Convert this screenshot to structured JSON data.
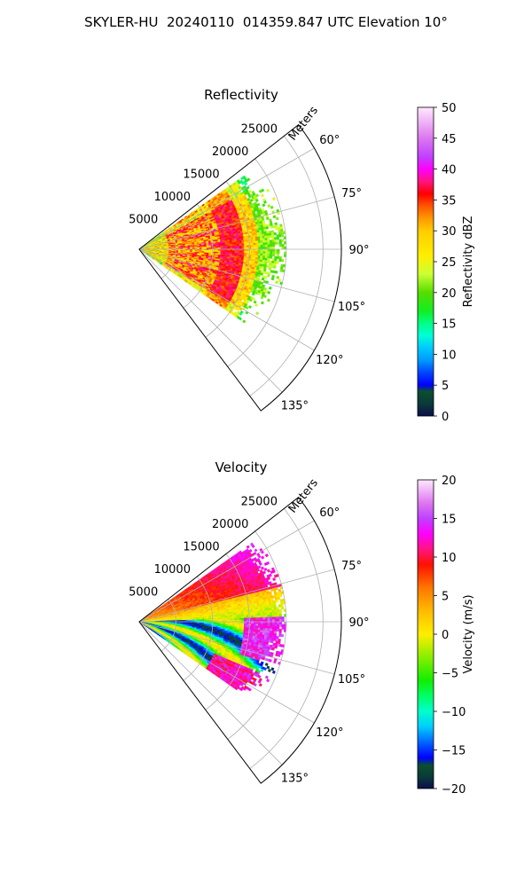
{
  "suptitle": "SKYLER-HU  20240110  014359.847 UTC Elevation 10°",
  "chart_data": [
    {
      "type": "heatmap",
      "title": "Reflectivity",
      "radial_axis_label": "Meters",
      "radial_ticks": [
        "5000",
        "10000",
        "15000",
        "20000",
        "25000"
      ],
      "radial_tick_values": [
        5000,
        10000,
        15000,
        20000,
        25000
      ],
      "angle_ticks": [
        "60°",
        "75°",
        "90°",
        "105°",
        "120°",
        "135°"
      ],
      "angle_tick_values": [
        60,
        75,
        90,
        105,
        120,
        135
      ],
      "theta_range": [
        52,
        143
      ],
      "r_max": 27500,
      "data_sector": [
        54,
        125
      ],
      "data_r_max": 20000,
      "grid": true,
      "colorbar": {
        "label": "Reflectivity dBZ",
        "range": [
          0,
          50
        ],
        "ticks": [
          "0",
          "5",
          "10",
          "15",
          "20",
          "25",
          "30",
          "35",
          "40",
          "45",
          "50"
        ],
        "stops": [
          {
            "v": 0,
            "c": "#0c0d4a"
          },
          {
            "v": 2,
            "c": "#0a3a3a"
          },
          {
            "v": 4,
            "c": "#0b4f2f"
          },
          {
            "v": 5,
            "c": "#0000ff"
          },
          {
            "v": 7,
            "c": "#0044ff"
          },
          {
            "v": 9,
            "c": "#0099ff"
          },
          {
            "v": 11,
            "c": "#00c8ff"
          },
          {
            "v": 13,
            "c": "#00ffd8"
          },
          {
            "v": 15,
            "c": "#00ff88"
          },
          {
            "v": 17,
            "c": "#11ee22"
          },
          {
            "v": 20,
            "c": "#55dd00"
          },
          {
            "v": 23,
            "c": "#ccff33"
          },
          {
            "v": 26,
            "c": "#ffee00"
          },
          {
            "v": 30,
            "c": "#ffcc00"
          },
          {
            "v": 32,
            "c": "#ff9900"
          },
          {
            "v": 34,
            "c": "#ff5500"
          },
          {
            "v": 36,
            "c": "#ff0000"
          },
          {
            "v": 38,
            "c": "#ff1480"
          },
          {
            "v": 40,
            "c": "#ff00ff"
          },
          {
            "v": 42,
            "c": "#c040ff"
          },
          {
            "v": 45,
            "c": "#dd77ee"
          },
          {
            "v": 50,
            "c": "#ffe8ff"
          }
        ]
      },
      "field_description": "Reflectivity mostly 25-38 dBZ near radar, decreasing to 18-24 dBZ beyond ~15 km"
    },
    {
      "type": "heatmap",
      "title": "Velocity",
      "radial_axis_label": "Meters",
      "radial_ticks": [
        "5000",
        "10000",
        "15000",
        "20000",
        "25000"
      ],
      "radial_tick_values": [
        5000,
        10000,
        15000,
        20000,
        25000
      ],
      "angle_ticks": [
        "60°",
        "75°",
        "90°",
        "105°",
        "120°",
        "135°"
      ],
      "angle_tick_values": [
        60,
        75,
        90,
        105,
        120,
        135
      ],
      "theta_range": [
        52,
        143
      ],
      "r_max": 27500,
      "data_sector": [
        54,
        125
      ],
      "data_r_max": 20000,
      "grid": true,
      "colorbar": {
        "label": "Velocity (m/s)",
        "range": [
          -20,
          20
        ],
        "ticks": [
          "−20",
          "−15",
          "−10",
          "−5",
          "0",
          "5",
          "10",
          "15",
          "20"
        ],
        "stops": [
          {
            "v": -20,
            "c": "#0c0d4a"
          },
          {
            "v": -18.5,
            "c": "#0a3a3a"
          },
          {
            "v": -17,
            "c": "#0b4f2f"
          },
          {
            "v": -16,
            "c": "#0000ff"
          },
          {
            "v": -14,
            "c": "#0066ff"
          },
          {
            "v": -12,
            "c": "#00ccff"
          },
          {
            "v": -10,
            "c": "#00ffcc"
          },
          {
            "v": -8,
            "c": "#00ff66"
          },
          {
            "v": -6,
            "c": "#11ee00"
          },
          {
            "v": -3,
            "c": "#88ee00"
          },
          {
            "v": 0,
            "c": "#ffee00"
          },
          {
            "v": 3,
            "c": "#ffbb00"
          },
          {
            "v": 6,
            "c": "#ff7700"
          },
          {
            "v": 9,
            "c": "#ff1100"
          },
          {
            "v": 11,
            "c": "#ff1480"
          },
          {
            "v": 13,
            "c": "#ff00ff"
          },
          {
            "v": 15,
            "c": "#c040ff"
          },
          {
            "v": 17,
            "c": "#dd77ee"
          },
          {
            "v": 20,
            "c": "#ffe8ff"
          }
        ]
      },
      "field_description": "Positive velocities (yellow-red) in northern part, negative (green-cyan-blue) bands curving through southern part, with magenta near the far edge"
    }
  ]
}
